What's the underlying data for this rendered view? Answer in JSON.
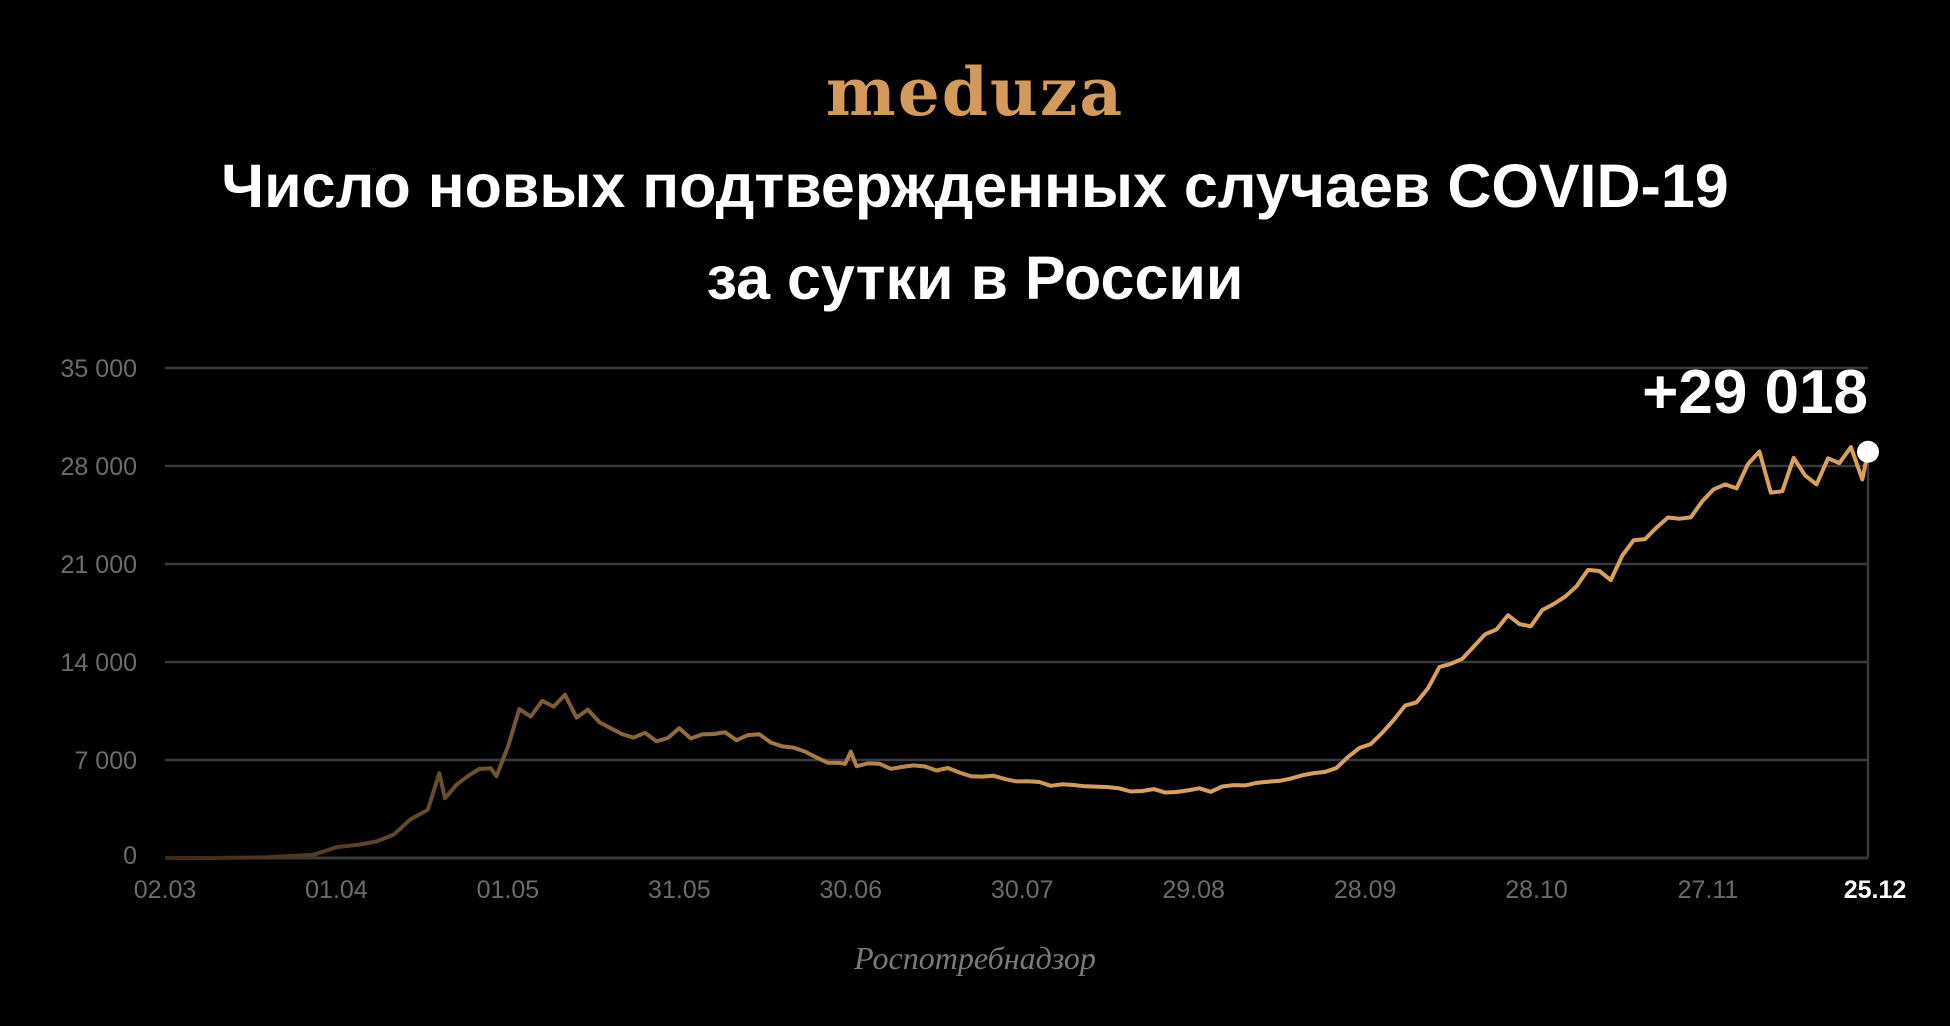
{
  "logo": "meduza",
  "title_lines": [
    "Число новых подтвержденных случаев COVID-19",
    "за сутки в России"
  ],
  "source": "Роспотребнадзор",
  "colors": {
    "background": "#000000",
    "line_start": "#3a2a18",
    "line_end": "#d9a05b",
    "logo": "#d39a5a",
    "grid": "#3a3a3a",
    "marker": "#ffffff"
  },
  "chart_data": {
    "type": "line",
    "title": "Число новых подтвержденных случаев COVID-19 за сутки в России",
    "xlabel": "",
    "ylabel": "",
    "ylim": [
      0,
      35000
    ],
    "xlim": [
      "02.03",
      "25.12"
    ],
    "grid": true,
    "y_ticks": [
      "0",
      "7 000",
      "14 000",
      "21 000",
      "28 000",
      "35 000"
    ],
    "y_tick_values": [
      0,
      7000,
      14000,
      21000,
      28000,
      35000
    ],
    "x_ticks": [
      "02.03",
      "01.04",
      "01.05",
      "31.05",
      "30.06",
      "30.07",
      "29.08",
      "28.09",
      "28.10",
      "27.11",
      "25.12"
    ],
    "last_value_label": "+29 018",
    "series": [
      {
        "dates": [
          "02.03",
          "10.03",
          "20.03",
          "25.03",
          "28.03",
          "01.04",
          "05.04",
          "08.04",
          "11.04",
          "14.04",
          "17.04",
          "19.04",
          "20.04",
          "22.04",
          "24.04",
          "26.04",
          "28.04",
          "29.04",
          "01.05",
          "03.05",
          "05.05",
          "07.05",
          "09.05",
          "11.05",
          "13.05",
          "15.05",
          "17.05",
          "19.05",
          "21.05",
          "23.05",
          "25.05",
          "27.05",
          "29.05",
          "31.05",
          "02.06",
          "04.06",
          "06.06",
          "08.06",
          "10.06",
          "12.06",
          "14.06",
          "16.06",
          "18.06",
          "20.06",
          "22.06",
          "24.06",
          "26.06",
          "28.06",
          "29.06",
          "30.06",
          "01.07",
          "03.07",
          "05.07",
          "07.07",
          "09.07",
          "11.07",
          "13.07",
          "15.07",
          "17.07",
          "19.07",
          "21.07",
          "23.07",
          "25.07",
          "27.07",
          "29.07",
          "31.07",
          "02.08",
          "04.08",
          "06.08",
          "08.08",
          "10.08",
          "12.08",
          "14.08",
          "16.08",
          "18.08",
          "20.08",
          "22.08",
          "24.08",
          "26.08",
          "28.08",
          "30.08",
          "01.09",
          "03.09",
          "05.09",
          "07.09",
          "09.09",
          "11.09",
          "13.09",
          "15.09",
          "17.09",
          "19.09",
          "21.09",
          "23.09",
          "25.09",
          "27.09",
          "29.09",
          "01.10",
          "03.10",
          "05.10",
          "07.10",
          "09.10",
          "11.10",
          "13.10",
          "15.10",
          "17.10",
          "19.10",
          "21.10",
          "23.10",
          "25.10",
          "27.10",
          "29.10",
          "31.10",
          "02.11",
          "04.11",
          "06.11",
          "08.11",
          "10.11",
          "12.11",
          "14.11",
          "16.11",
          "18.11",
          "20.11",
          "22.11",
          "24.11",
          "26.11",
          "28.11",
          "30.11",
          "02.12",
          "04.12",
          "06.12",
          "08.12",
          "10.12",
          "12.12",
          "14.12",
          "16.12",
          "18.12",
          "20.12",
          "22.12",
          "24.12",
          "25.12"
        ],
        "values": [
          0,
          3,
          53,
          163,
          228,
          771,
          954,
          1175,
          1667,
          2774,
          3448,
          6060,
          4268,
          5236,
          5849,
          6361,
          6411,
          5841,
          7933,
          10633,
          10102,
          11231,
          10817,
          11656,
          10028,
          10598,
          9709,
          9263,
          8849,
          8599,
          8946,
          8338,
          8572,
          9268,
          8536,
          8831,
          8855,
          8985,
          8404,
          8779,
          8835,
          8248,
          7972,
          7889,
          7600,
          7176,
          6800,
          6791,
          6719,
          7600,
          6556,
          6760,
          6736,
          6368,
          6509,
          6611,
          6537,
          6248,
          6428,
          6109,
          5842,
          5811,
          5871,
          5635,
          5475,
          5482,
          5427,
          5159,
          5267,
          5212,
          5118,
          5102,
          5061,
          4969,
          4748,
          4785,
          4921,
          4676,
          4711,
          4829,
          4980,
          4729,
          5110,
          5205,
          5185,
          5363,
          5449,
          5509,
          5670,
          5905,
          6065,
          6148,
          6431,
          7212,
          7867,
          8135,
          8945,
          9859,
          10888,
          11115,
          12126,
          13634,
          13868,
          14231,
          15099,
          15982,
          16319,
          17340,
          16710,
          16550,
          17717,
          18140,
          18665,
          19404,
          20582,
          20498,
          19851,
          21608,
          22702,
          22778,
          23610,
          24318,
          24236,
          24326,
          25487,
          26338,
          26683,
          26402,
          28145,
          29039,
          26097,
          26190,
          28585,
          27328,
          26689,
          28552,
          28209,
          29350,
          27039,
          29018
        ]
      }
    ]
  }
}
